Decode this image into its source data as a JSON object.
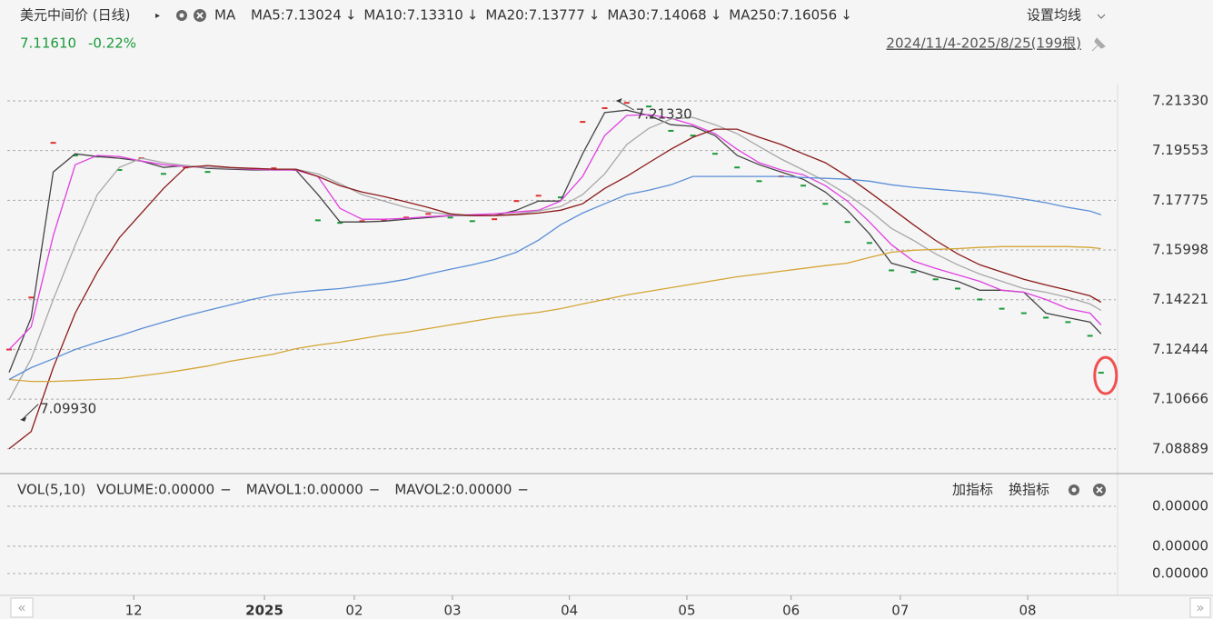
{
  "header": {
    "title": "美元中间价 (日线)",
    "ma": "MA",
    "settings": "设置均线",
    "last": "7.11610",
    "change": "-0.22%",
    "range": "2024/11/4-2025/8/25(199根)"
  },
  "chart_data": {
    "type": "line",
    "x": [
      0,
      4,
      8,
      12,
      16,
      20,
      24,
      28,
      32,
      36,
      40,
      44,
      48,
      52,
      56,
      60,
      64,
      68,
      72,
      76,
      80,
      84,
      88,
      92,
      96,
      100,
      104,
      108,
      112,
      116,
      120,
      124,
      128,
      132,
      136,
      140,
      144,
      148,
      152,
      156,
      160,
      164,
      168,
      172,
      176,
      180,
      184,
      188,
      192,
      196,
      198
    ],
    "xlim": [
      0,
      201
    ],
    "xticks": [
      {
        "value": 22.6,
        "label": "12"
      },
      {
        "value": 46.3,
        "label": "2025"
      },
      {
        "value": 62.6,
        "label": "02"
      },
      {
        "value": 80.4,
        "label": "03"
      },
      {
        "value": 101.6,
        "label": "04"
      },
      {
        "value": 122.9,
        "label": "05"
      },
      {
        "value": 141.8,
        "label": "06"
      },
      {
        "value": 161.6,
        "label": "07"
      },
      {
        "value": 184.7,
        "label": "08"
      }
    ],
    "ylim": [
      7.082,
      7.2185
    ],
    "yticks": [
      {
        "value": 7.2133,
        "label": "7.21330"
      },
      7.19553,
      7.17775,
      7.15998,
      7.14221,
      7.12444,
      7.10666,
      7.08889
    ],
    "grid": true,
    "series": [
      {
        "name": "MA5:7.13024",
        "arrow": "↓",
        "color": "#444444",
        "values": [
          7.1162,
          7.1358,
          7.1879,
          7.1944,
          7.1934,
          7.1928,
          7.1918,
          7.1895,
          7.1902,
          7.1892,
          7.1889,
          7.1886,
          7.1886,
          7.1886,
          7.1798,
          7.17,
          7.17,
          7.1703,
          7.171,
          7.1716,
          7.1723,
          7.1723,
          7.1723,
          7.1742,
          7.1775,
          7.1775,
          7.1944,
          7.2091,
          7.21,
          7.2081,
          7.2048,
          7.2042,
          7.2009,
          7.1938,
          7.1905,
          7.1879,
          7.1853,
          7.1807,
          7.1742,
          7.1658,
          7.1553,
          7.1531,
          7.1505,
          7.1488,
          7.1456,
          7.1456,
          7.1449,
          7.1374,
          7.1358,
          7.1342,
          7.13
        ]
      },
      {
        "name": "MA10:7.13310",
        "arrow": "↓",
        "color": "#e040e0",
        "values": [
          7.1244,
          7.1325,
          7.1651,
          7.1905,
          7.1938,
          7.1934,
          7.1918,
          7.1905,
          7.1899,
          7.1895,
          7.1892,
          7.1889,
          7.1886,
          7.1886,
          7.1863,
          7.1749,
          7.171,
          7.171,
          7.1713,
          7.1719,
          7.1723,
          7.1726,
          7.1729,
          7.1736,
          7.1742,
          7.1775,
          7.1863,
          7.2009,
          7.2081,
          7.2084,
          7.2071,
          7.2048,
          7.2016,
          7.196,
          7.1912,
          7.1886,
          7.1869,
          7.183,
          7.1775,
          7.17,
          7.1619,
          7.156,
          7.1534,
          7.1511,
          7.1488,
          7.1456,
          7.1449,
          7.1423,
          7.139,
          7.1374,
          7.1332
        ]
      },
      {
        "name": "MA20:7.13777",
        "arrow": "↓",
        "color": "#a8a8a8",
        "values": [
          7.1065,
          7.1211,
          7.1423,
          7.1618,
          7.1798,
          7.1895,
          7.1928,
          7.1912,
          7.1902,
          7.1895,
          7.1892,
          7.1892,
          7.1889,
          7.1889,
          7.1872,
          7.1837,
          7.1798,
          7.1775,
          7.1752,
          7.1736,
          7.1726,
          7.1723,
          7.1723,
          7.1729,
          7.1739,
          7.1755,
          7.1798,
          7.1872,
          7.1977,
          7.2035,
          7.2068,
          7.2074,
          7.2048,
          7.2016,
          7.197,
          7.1925,
          7.1886,
          7.1846,
          7.1798,
          7.1742,
          7.1677,
          7.1634,
          7.1586,
          7.1547,
          7.1514,
          7.1488,
          7.1462,
          7.1449,
          7.143,
          7.1407,
          7.1384
        ]
      },
      {
        "name": "MA30:7.14068",
        "arrow": "↓",
        "color": "#8b1a1a",
        "values": [
          7.0889,
          7.0951,
          7.1179,
          7.1374,
          7.1521,
          7.1644,
          7.1732,
          7.182,
          7.1895,
          7.1902,
          7.1895,
          7.1892,
          7.1889,
          7.1889,
          7.1863,
          7.183,
          7.1807,
          7.1791,
          7.1772,
          7.1752,
          7.1729,
          7.1723,
          7.1723,
          7.1726,
          7.1732,
          7.1742,
          7.1765,
          7.182,
          7.1863,
          7.1912,
          7.196,
          7.2003,
          7.2032,
          7.2032,
          7.2003,
          7.1977,
          7.1944,
          7.1912,
          7.1863,
          7.1807,
          7.1749,
          7.169,
          7.1634,
          7.1586,
          7.1547,
          7.1521,
          7.1495,
          7.1475,
          7.1456,
          7.1436,
          7.1413
        ]
      },
      {
        "name": "MA250:7.16056",
        "arrow": "↓",
        "color": "#2e8b2e",
        "values": [
          7.1137,
          7.113,
          7.113,
          7.1133,
          7.1137,
          7.114,
          7.115,
          7.116,
          7.1172,
          7.1185,
          7.1202,
          7.1215,
          7.1228,
          7.1247,
          7.126,
          7.127,
          7.1283,
          7.1296,
          7.1306,
          7.1319,
          7.1332,
          7.1345,
          7.1358,
          7.1368,
          7.1377,
          7.139,
          7.1407,
          7.1423,
          7.1439,
          7.1452,
          7.1465,
          7.1478,
          7.1491,
          7.1504,
          7.1514,
          7.1524,
          7.1534,
          7.1544,
          7.1553,
          7.1573,
          7.1592,
          7.1599,
          7.1602,
          7.1605,
          7.1609,
          7.1612,
          7.1612,
          7.1612,
          7.1612,
          7.1609,
          7.1605
        ],
        "line_color": "#d4a534"
      },
      {
        "color": "#5b8fd6",
        "values": [
          7.1137,
          7.1179,
          7.1211,
          7.1244,
          7.127,
          7.1293,
          7.1319,
          7.1342,
          7.1364,
          7.1384,
          7.1403,
          7.1423,
          7.1439,
          7.1449,
          7.1456,
          7.1462,
          7.1472,
          7.1482,
          7.1495,
          7.1514,
          7.1531,
          7.1547,
          7.1566,
          7.1592,
          7.1635,
          7.169,
          7.1732,
          7.1765,
          7.1798,
          7.1814,
          7.1833,
          7.1863,
          7.1863,
          7.1863,
          7.1863,
          7.1863,
          7.1859,
          7.1856,
          7.1853,
          7.1846,
          7.1833,
          7.1824,
          7.1817,
          7.1811,
          7.1804,
          7.1794,
          7.1782,
          7.1769,
          7.1752,
          7.1739,
          7.1726
        ]
      }
    ],
    "closes": {
      "up_color": "#e03030",
      "down_color": "#1a9a3a",
      "values": [
        7.1244,
        7.143,
        7.1983,
        7.1938,
        7.1934,
        7.1886,
        7.1928,
        7.1872,
        7.1895,
        7.1879,
        7.1892,
        7.1889,
        7.1892,
        7.1886,
        7.1706,
        7.1697,
        7.1703,
        7.1706,
        7.1716,
        7.1729,
        7.1716,
        7.1703,
        7.171,
        7.1775,
        7.1794,
        7.1788,
        7.2058,
        7.2107,
        7.2126,
        7.2113,
        7.2026,
        7.2009,
        7.1944,
        7.1895,
        7.1846,
        7.1863,
        7.183,
        7.1765,
        7.17,
        7.1625,
        7.1527,
        7.1521,
        7.1495,
        7.1462,
        7.1423,
        7.139,
        7.1374,
        7.1358,
        7.1342,
        7.1293,
        7.1161
      ]
    },
    "annotations": [
      {
        "x": 110,
        "value": 7.2133,
        "label": "7.21330"
      },
      {
        "x": 2,
        "value": 7.0993,
        "label": "7.09930"
      }
    ]
  },
  "volume_panel": {
    "title": "VOL(5,10)",
    "dash": "−",
    "items": [
      {
        "text": "VOLUME:0.00000",
        "color": "#333333"
      },
      {
        "text": "MAVOL1:0.00000",
        "color": "#e040e0"
      },
      {
        "text": "MAVOL2:0.00000",
        "color": "#a8a8a8"
      }
    ],
    "buttons": [
      "加指标",
      "换指标"
    ],
    "axis_labels": [
      "0.00000",
      "0.00000",
      "0.00000"
    ]
  }
}
